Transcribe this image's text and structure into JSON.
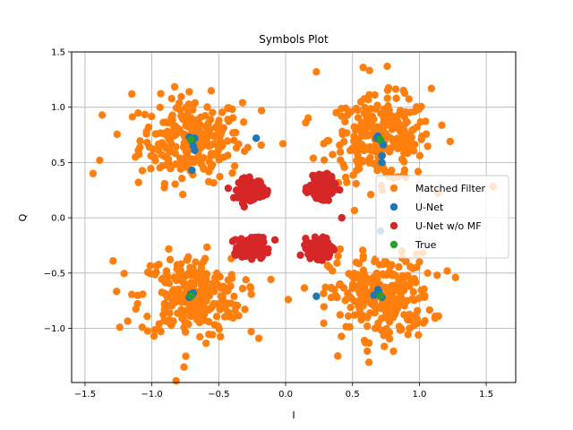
{
  "chart_data": {
    "type": "scatter",
    "title": "Symbols Plot",
    "xlabel": "I",
    "ylabel": "Q",
    "xlim": [
      -1.6,
      1.72
    ],
    "ylim": [
      -1.49,
      1.5
    ],
    "xticks": [
      -1.5,
      -1.0,
      -0.5,
      0.0,
      0.5,
      1.0,
      1.5
    ],
    "xtick_labels": [
      "−1.5",
      "−1.0",
      "−0.5",
      "0.0",
      "0.5",
      "1.0",
      "1.5"
    ],
    "yticks": [
      -1.0,
      -0.5,
      0.0,
      0.5,
      1.0,
      1.5
    ],
    "ytick_labels": [
      "−1.0",
      "−0.5",
      "0.0",
      "0.5",
      "1.0",
      "1.5"
    ],
    "grid": true,
    "legend_position": "center-right",
    "series": [
      {
        "name": "Matched Filter",
        "color": "#ff7f0e",
        "clusters": [
          {
            "center": [
              -0.71,
              0.71
            ],
            "spread": 0.19,
            "count": 260
          },
          {
            "center": [
              0.71,
              0.71
            ],
            "spread": 0.19,
            "count": 260
          },
          {
            "center": [
              -0.71,
              -0.71
            ],
            "spread": 0.19,
            "count": 260
          },
          {
            "center": [
              0.71,
              -0.71
            ],
            "spread": 0.19,
            "count": 260
          }
        ],
        "points": [
          [
            -1.44,
            0.4
          ],
          [
            -1.39,
            0.52
          ],
          [
            -1.29,
            -0.39
          ],
          [
            -1.24,
            -0.99
          ],
          [
            -1.15,
            1.12
          ],
          [
            0.23,
            1.32
          ],
          [
            0.58,
            1.36
          ],
          [
            0.76,
            1.37
          ],
          [
            1.55,
            0.28
          ],
          [
            1.27,
            -0.54
          ],
          [
            -0.76,
            -1.35
          ],
          [
            0.39,
            -1.25
          ],
          [
            -0.2,
            -1.09
          ],
          [
            0.02,
            -0.74
          ],
          [
            -0.02,
            0.67
          ],
          [
            0.15,
            0.86
          ],
          [
            1.09,
            1.17
          ],
          [
            -1.1,
            0.32
          ],
          [
            1.23,
            0.69
          ],
          [
            -0.18,
            0.97
          ]
        ]
      },
      {
        "name": "U-Net",
        "color": "#1f77b4",
        "points": [
          [
            -0.7,
            0.69
          ],
          [
            -0.69,
            0.65
          ],
          [
            -0.68,
            0.72
          ],
          [
            -0.72,
            0.73
          ],
          [
            -0.68,
            0.61
          ],
          [
            -0.7,
            0.43
          ],
          [
            -0.22,
            0.72
          ],
          [
            0.71,
            0.7
          ],
          [
            0.69,
            0.74
          ],
          [
            0.73,
            0.66
          ],
          [
            0.72,
            0.56
          ],
          [
            0.72,
            0.5
          ],
          [
            0.68,
            0.72
          ],
          [
            -0.71,
            -0.69
          ],
          [
            -0.7,
            -0.7
          ],
          [
            -0.72,
            -0.72
          ],
          [
            -0.69,
            -0.68
          ],
          [
            0.7,
            -0.7
          ],
          [
            0.69,
            -0.65
          ],
          [
            0.72,
            -0.72
          ],
          [
            0.66,
            -0.7
          ],
          [
            0.23,
            -0.71
          ],
          [
            0.71,
            -0.12
          ],
          [
            0.7,
            -0.67
          ]
        ]
      },
      {
        "name": "U-Net w/o MF",
        "color": "#d62728",
        "clusters": [
          {
            "center": [
              -0.26,
              0.26
            ],
            "spread": 0.045,
            "count": 180
          },
          {
            "center": [
              0.27,
              0.27
            ],
            "spread": 0.045,
            "count": 180
          },
          {
            "center": [
              -0.26,
              -0.27
            ],
            "spread": 0.045,
            "count": 180
          },
          {
            "center": [
              0.26,
              -0.27
            ],
            "spread": 0.045,
            "count": 180
          }
        ],
        "points": [
          [
            -0.31,
            0.1
          ],
          [
            -0.08,
            -0.2
          ],
          [
            0.42,
            0.0
          ]
        ]
      },
      {
        "name": "True",
        "color": "#2ca02c",
        "points": [
          [
            -0.707,
            0.707
          ],
          [
            0.707,
            0.707
          ],
          [
            -0.707,
            -0.707
          ],
          [
            0.707,
            -0.707
          ]
        ]
      }
    ]
  }
}
